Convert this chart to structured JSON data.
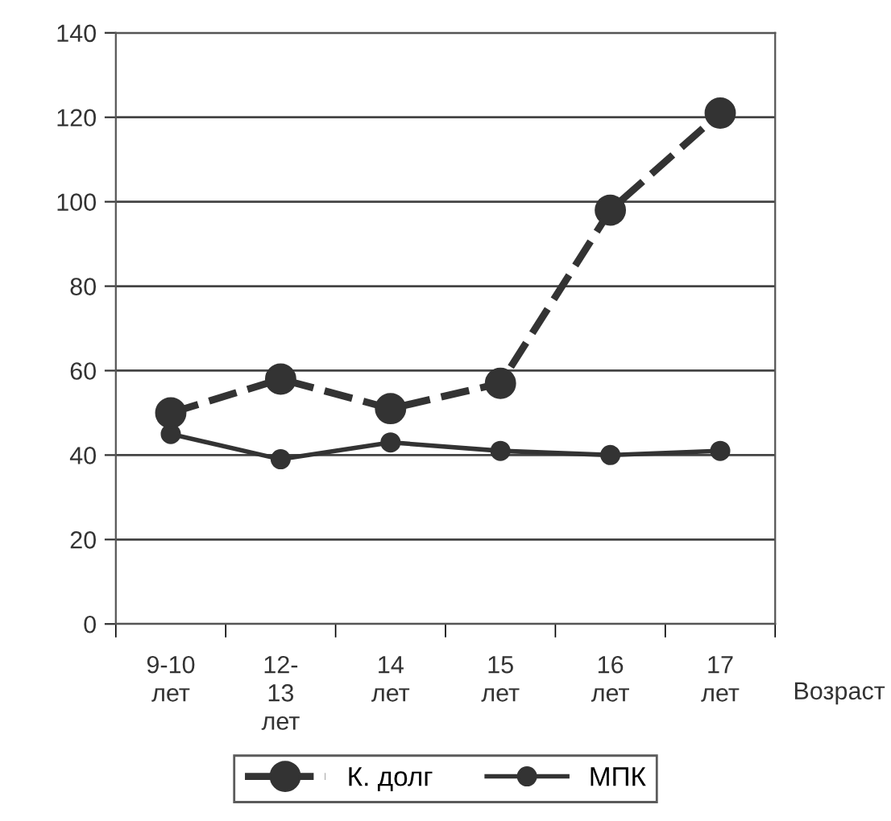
{
  "chart_data": {
    "type": "line",
    "xlabel": "Возраст",
    "categories": [
      "9-10\nлет",
      "12-\n13\nлет",
      "14\nлет",
      "15\nлет",
      "16\nлет",
      "17\nлет"
    ],
    "series": [
      {
        "name": "К. долг",
        "color": "#333333",
        "values": [
          50,
          58,
          51,
          57,
          98,
          121
        ],
        "line_style": "dashed",
        "marker": "circle"
      },
      {
        "name": "МПК",
        "color": "#333333",
        "values": [
          45,
          39,
          43,
          41,
          40,
          41
        ],
        "line_style": "solid",
        "marker": "circle"
      }
    ],
    "ylim": [
      0,
      140
    ],
    "yticks": [
      0,
      20,
      40,
      60,
      80,
      100,
      120,
      140
    ],
    "grid": "y",
    "legend": "bottom"
  }
}
